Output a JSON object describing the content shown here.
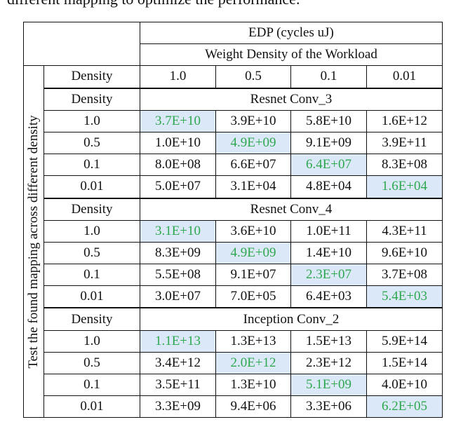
{
  "caption": "different mapping to optimize the performance.",
  "header": {
    "edp": "EDP (cycles uJ)",
    "weight_density": "Weight Density of the Workload",
    "density_label": "Density",
    "columns": [
      "1.0",
      "0.5",
      "0.1",
      "0.01"
    ]
  },
  "side_label": "Test the found mapping across different density",
  "sections": [
    {
      "density_label": "Density",
      "title": "Resnet Conv_3",
      "rows": [
        {
          "density": "1.0",
          "values": [
            "3.7E+10",
            "3.9E+10",
            "5.8E+10",
            "1.6E+12"
          ]
        },
        {
          "density": "0.5",
          "values": [
            "1.0E+10",
            "4.9E+09",
            "9.1E+09",
            "3.9E+11"
          ]
        },
        {
          "density": "0.1",
          "values": [
            "8.0E+08",
            "6.6E+07",
            "6.4E+07",
            "8.3E+08"
          ]
        },
        {
          "density": "0.01",
          "values": [
            "5.0E+07",
            "3.1E+04",
            "4.8E+04",
            "1.6E+04"
          ]
        }
      ]
    },
    {
      "density_label": "Density",
      "title": "Resnet Conv_4",
      "rows": [
        {
          "density": "1.0",
          "values": [
            "3.1E+10",
            "3.6E+10",
            "1.0E+11",
            "4.3E+11"
          ]
        },
        {
          "density": "0.5",
          "values": [
            "8.3E+09",
            "4.9E+09",
            "1.4E+10",
            "9.6E+10"
          ]
        },
        {
          "density": "0.1",
          "values": [
            "5.5E+08",
            "9.1E+07",
            "2.3E+07",
            "3.7E+08"
          ]
        },
        {
          "density": "0.01",
          "values": [
            "3.0E+07",
            "7.0E+05",
            "6.4E+03",
            "5.4E+03"
          ]
        }
      ]
    },
    {
      "density_label": "Density",
      "title": "Inception Conv_2",
      "rows": [
        {
          "density": "1.0",
          "values": [
            "1.1E+13",
            "1.3E+13",
            "1.5E+13",
            "5.9E+14"
          ]
        },
        {
          "density": "0.5",
          "values": [
            "3.4E+12",
            "2.0E+12",
            "2.3E+12",
            "1.5E+14"
          ]
        },
        {
          "density": "0.1",
          "values": [
            "3.5E+11",
            "1.3E+10",
            "5.1E+09",
            "4.0E+10"
          ]
        },
        {
          "density": "0.01",
          "values": [
            "3.3E+09",
            "9.4E+06",
            "3.3E+06",
            "6.2E+05"
          ]
        }
      ]
    }
  ],
  "colors": {
    "highlight_bg": "#dbe8f8",
    "highlight_text": "#2ea84f"
  }
}
